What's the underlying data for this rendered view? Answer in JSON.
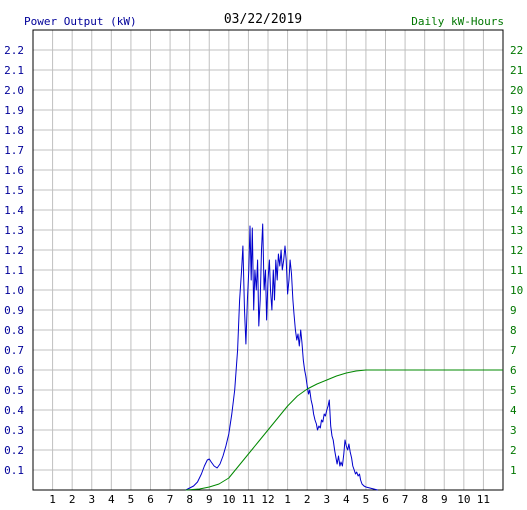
{
  "chart_data": {
    "type": "line",
    "title": "03/22/2019",
    "left_axis_label": "Power Output (kW)",
    "right_axis_label": "Daily kW-Hours",
    "x_ticks": [
      "1",
      "2",
      "3",
      "4",
      "5",
      "6",
      "7",
      "8",
      "9",
      "10",
      "11",
      "12",
      "1",
      "2",
      "3",
      "4",
      "5",
      "6",
      "7",
      "8",
      "9",
      "10",
      "11"
    ],
    "x_range_hours": [
      0,
      24
    ],
    "left_ylim": [
      0,
      2.3
    ],
    "left_ticks": [
      "0.1",
      "0.2",
      "0.3",
      "0.4",
      "0.5",
      "0.6",
      "0.7",
      "0.8",
      "0.9",
      "1.0",
      "1.1",
      "1.2",
      "1.3",
      "1.4",
      "1.5",
      "1.6",
      "1.7",
      "1.8",
      "1.9",
      "2.0",
      "2.1",
      "2.2"
    ],
    "right_ylim": [
      0,
      23
    ],
    "right_ticks": [
      "1",
      "2",
      "3",
      "4",
      "5",
      "6",
      "7",
      "8",
      "9",
      "10",
      "11",
      "12",
      "13",
      "14",
      "15",
      "16",
      "17",
      "18",
      "19",
      "20",
      "21",
      "22"
    ],
    "grid": true,
    "colors": {
      "power": "#0000cc",
      "energy": "#008800",
      "left_labels": "#000099",
      "right_labels": "#007700",
      "grid": "#c0c0c0"
    },
    "series": [
      {
        "axis": "left",
        "points": [
          [
            7.8,
            0.0
          ],
          [
            8.0,
            0.01
          ],
          [
            8.2,
            0.02
          ],
          [
            8.4,
            0.04
          ],
          [
            8.6,
            0.08
          ],
          [
            8.75,
            0.12
          ],
          [
            8.9,
            0.15
          ],
          [
            9.0,
            0.155
          ],
          [
            9.1,
            0.14
          ],
          [
            9.25,
            0.12
          ],
          [
            9.4,
            0.11
          ],
          [
            9.55,
            0.13
          ],
          [
            9.7,
            0.17
          ],
          [
            9.85,
            0.22
          ],
          [
            10.0,
            0.28
          ],
          [
            10.15,
            0.38
          ],
          [
            10.3,
            0.5
          ],
          [
            10.45,
            0.7
          ],
          [
            10.55,
            0.95
          ],
          [
            10.65,
            1.1
          ],
          [
            10.72,
            1.22
          ],
          [
            10.8,
            0.9
          ],
          [
            10.87,
            0.73
          ],
          [
            10.95,
            0.95
          ],
          [
            11.02,
            1.1
          ],
          [
            11.08,
            1.32
          ],
          [
            11.14,
            1.05
          ],
          [
            11.2,
            1.31
          ],
          [
            11.27,
            0.9
          ],
          [
            11.33,
            1.1
          ],
          [
            11.4,
            1.0
          ],
          [
            11.47,
            1.15
          ],
          [
            11.53,
            0.82
          ],
          [
            11.6,
            0.95
          ],
          [
            11.67,
            1.2
          ],
          [
            11.73,
            1.33
          ],
          [
            11.8,
            1.0
          ],
          [
            11.87,
            1.1
          ],
          [
            11.93,
            0.85
          ],
          [
            12.0,
            1.05
          ],
          [
            12.07,
            1.15
          ],
          [
            12.13,
            1.0
          ],
          [
            12.2,
            0.9
          ],
          [
            12.27,
            1.1
          ],
          [
            12.33,
            0.95
          ],
          [
            12.4,
            1.15
          ],
          [
            12.47,
            1.05
          ],
          [
            12.53,
            1.18
          ],
          [
            12.6,
            1.12
          ],
          [
            12.67,
            1.2
          ],
          [
            12.73,
            1.1
          ],
          [
            12.8,
            1.15
          ],
          [
            12.87,
            1.22
          ],
          [
            12.93,
            1.15
          ],
          [
            13.0,
            0.98
          ],
          [
            13.07,
            1.05
          ],
          [
            13.13,
            1.15
          ],
          [
            13.2,
            1.08
          ],
          [
            13.27,
            0.95
          ],
          [
            13.33,
            0.88
          ],
          [
            13.4,
            0.8
          ],
          [
            13.47,
            0.75
          ],
          [
            13.53,
            0.78
          ],
          [
            13.6,
            0.72
          ],
          [
            13.67,
            0.8
          ],
          [
            13.73,
            0.74
          ],
          [
            13.8,
            0.65
          ],
          [
            13.87,
            0.6
          ],
          [
            13.93,
            0.57
          ],
          [
            14.0,
            0.52
          ],
          [
            14.07,
            0.48
          ],
          [
            14.13,
            0.5
          ],
          [
            14.2,
            0.45
          ],
          [
            14.27,
            0.42
          ],
          [
            14.33,
            0.38
          ],
          [
            14.4,
            0.35
          ],
          [
            14.47,
            0.33
          ],
          [
            14.53,
            0.3
          ],
          [
            14.6,
            0.32
          ],
          [
            14.67,
            0.31
          ],
          [
            14.73,
            0.35
          ],
          [
            14.8,
            0.34
          ],
          [
            14.87,
            0.38
          ],
          [
            14.93,
            0.37
          ],
          [
            15.0,
            0.4
          ],
          [
            15.07,
            0.42
          ],
          [
            15.13,
            0.45
          ],
          [
            15.2,
            0.32
          ],
          [
            15.27,
            0.27
          ],
          [
            15.33,
            0.25
          ],
          [
            15.4,
            0.2
          ],
          [
            15.47,
            0.16
          ],
          [
            15.53,
            0.13
          ],
          [
            15.6,
            0.17
          ],
          [
            15.67,
            0.12
          ],
          [
            15.73,
            0.14
          ],
          [
            15.8,
            0.12
          ],
          [
            15.87,
            0.18
          ],
          [
            15.93,
            0.25
          ],
          [
            16.0,
            0.22
          ],
          [
            16.07,
            0.2
          ],
          [
            16.13,
            0.23
          ],
          [
            16.2,
            0.19
          ],
          [
            16.27,
            0.16
          ],
          [
            16.33,
            0.12
          ],
          [
            16.4,
            0.1
          ],
          [
            16.47,
            0.08
          ],
          [
            16.53,
            0.09
          ],
          [
            16.6,
            0.07
          ],
          [
            16.67,
            0.08
          ],
          [
            16.73,
            0.05
          ],
          [
            16.8,
            0.03
          ],
          [
            16.9,
            0.02
          ],
          [
            17.0,
            0.015
          ],
          [
            17.2,
            0.01
          ],
          [
            17.4,
            0.005
          ],
          [
            17.6,
            0.0
          ]
        ]
      },
      {
        "axis": "right",
        "points": [
          [
            7.8,
            0.0
          ],
          [
            8.5,
            0.05
          ],
          [
            9.0,
            0.15
          ],
          [
            9.5,
            0.3
          ],
          [
            10.0,
            0.6
          ],
          [
            10.5,
            1.2
          ],
          [
            11.0,
            1.8
          ],
          [
            11.5,
            2.4
          ],
          [
            12.0,
            3.0
          ],
          [
            12.5,
            3.6
          ],
          [
            13.0,
            4.2
          ],
          [
            13.5,
            4.7
          ],
          [
            14.0,
            5.05
          ],
          [
            14.5,
            5.3
          ],
          [
            15.0,
            5.5
          ],
          [
            15.5,
            5.7
          ],
          [
            16.0,
            5.85
          ],
          [
            16.5,
            5.95
          ],
          [
            17.0,
            6.0
          ],
          [
            17.5,
            6.0
          ],
          [
            24.0,
            6.0
          ]
        ]
      }
    ]
  }
}
